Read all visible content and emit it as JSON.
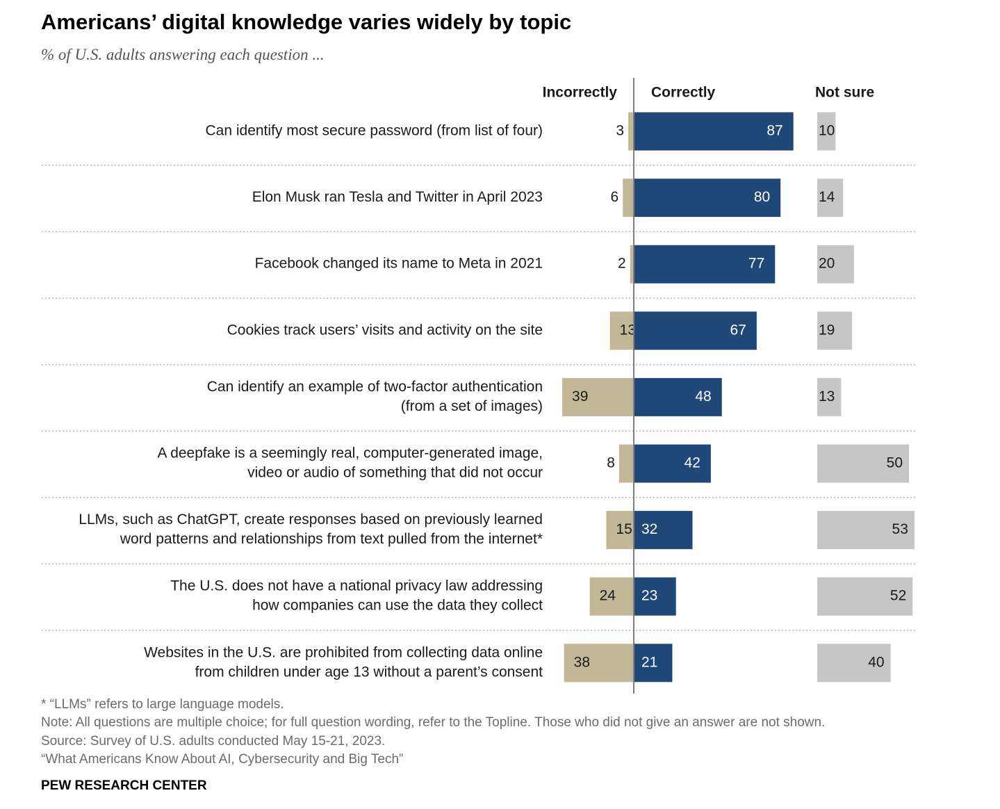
{
  "title": "Americans’ digital knowledge varies widely by topic",
  "subtitle": "% of U.S. adults answering each question ...",
  "chart_data": {
    "type": "bar",
    "orientation": "horizontal-diverging",
    "columns": [
      "Incorrectly",
      "Correctly",
      "Not sure"
    ],
    "categories": [
      [
        "Can identify most secure password (from list of four)"
      ],
      [
        "Elon Musk ran Tesla and Twitter in April 2023"
      ],
      [
        "Facebook changed its name to Meta in 2021"
      ],
      [
        "Cookies track users’ visits and activity on the site"
      ],
      [
        "Can identify an example of two-factor authentication",
        "(from a set of images)"
      ],
      [
        "A deepfake is a seemingly real, computer-generated image,",
        "video or audio of something that did not occur"
      ],
      [
        "LLMs, such as ChatGPT, create responses based on previously learned",
        "word patterns and relationships from text pulled from the internet*"
      ],
      [
        "The U.S. does not have a national privacy law addressing",
        "how companies can use the data they collect"
      ],
      [
        "Websites in the U.S. are prohibited from collecting data online",
        "from children under age 13 without a parent’s consent"
      ]
    ],
    "series": [
      {
        "name": "Incorrectly",
        "color": "#c2b897",
        "values": [
          3,
          6,
          2,
          13,
          39,
          8,
          15,
          24,
          38
        ]
      },
      {
        "name": "Correctly",
        "color": "#1f4778",
        "values": [
          87,
          80,
          77,
          67,
          48,
          42,
          32,
          23,
          21
        ]
      },
      {
        "name": "Not sure",
        "color": "#c6c6c6",
        "values": [
          10,
          14,
          20,
          19,
          13,
          50,
          53,
          52,
          40
        ]
      }
    ],
    "xlim": [
      0,
      100
    ]
  },
  "footnotes": [
    "* “LLMs” refers to large language models.",
    "Note: All questions are multiple choice; for full question wording, refer to the Topline. Those who did not give an answer are not shown.",
    "Source: Survey of U.S. adults conducted May 15-21, 2023.",
    "“What Americans Know About AI, Cybersecurity and Big Tech”"
  ],
  "brand": "PEW RESEARCH CENTER"
}
